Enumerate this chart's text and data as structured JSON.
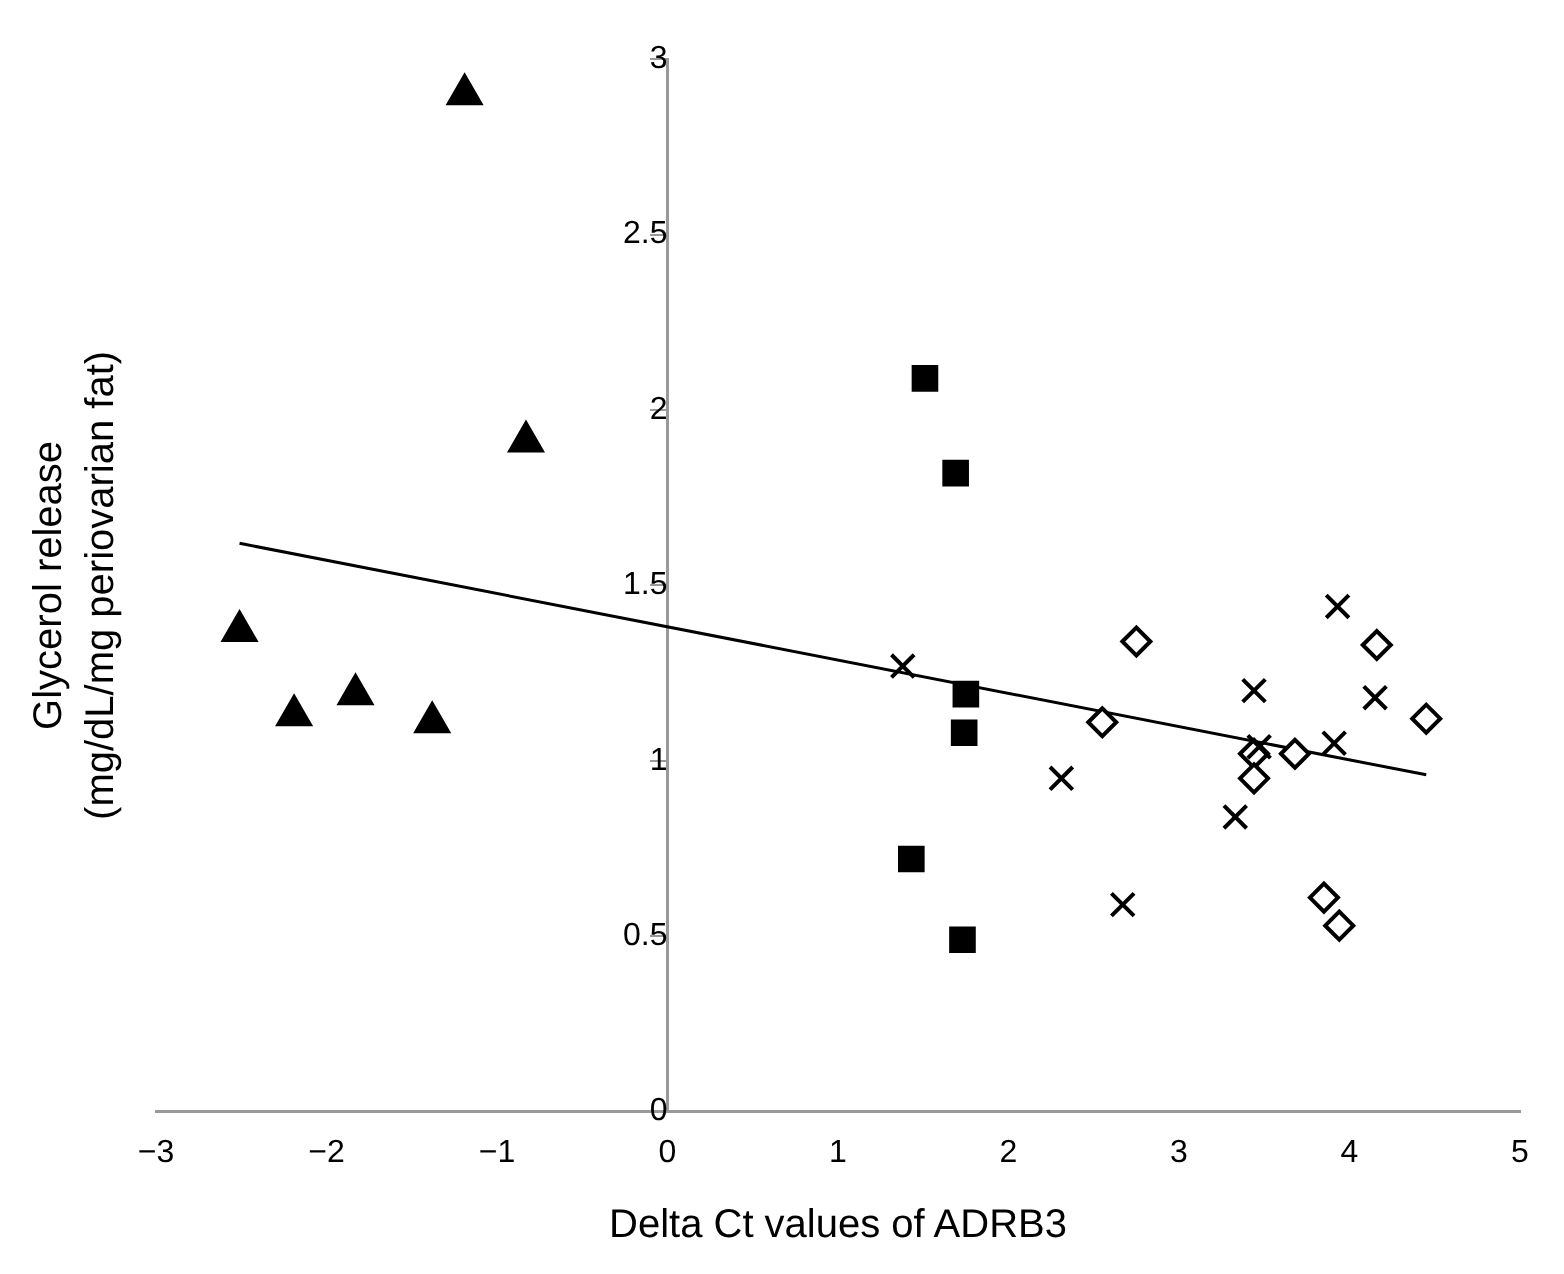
{
  "chart_data": {
    "type": "scatter",
    "xlabel": "Delta Ct values of ADRB3",
    "ylabel": "Glycerol release\n(mg/dL/mg periovarian fat)",
    "xlim": [
      -3,
      5
    ],
    "xticks": [
      {
        "value": -3,
        "label": "−3"
      },
      {
        "value": -2,
        "label": "−2"
      },
      {
        "value": -1,
        "label": "−1"
      },
      0,
      1,
      2,
      3,
      4,
      5
    ],
    "ylim": [
      0,
      3
    ],
    "yticks": [
      0,
      0.5,
      1,
      1.5,
      2,
      2.5,
      3
    ],
    "grid": false,
    "legend": false,
    "series": [
      {
        "type": "scatter",
        "marker": "triangle",
        "color": "#000000",
        "x": [
          -2.51,
          -2.19,
          -1.83,
          -1.38,
          -1.19,
          -0.83
        ],
        "values": [
          1.37,
          1.13,
          1.19,
          1.11,
          2.9,
          1.91
        ]
      },
      {
        "type": "scatter",
        "marker": "square",
        "color": "#000000",
        "x": [
          1.51,
          1.69,
          1.75,
          1.74,
          1.43,
          1.73
        ],
        "values": [
          2.09,
          1.82,
          1.19,
          1.08,
          0.72,
          0.49
        ]
      },
      {
        "type": "scatter",
        "marker": "cross",
        "color": "#000000",
        "x": [
          1.38,
          2.31,
          2.67,
          3.33,
          3.44,
          3.47,
          3.91,
          3.93,
          4.15
        ],
        "values": [
          1.27,
          0.95,
          0.59,
          0.84,
          1.2,
          1.04,
          1.05,
          1.44,
          1.18
        ]
      },
      {
        "type": "scatter",
        "marker": "diamond",
        "color": "#000000",
        "x": [
          2.75,
          2.55,
          3.44,
          3.44,
          3.68,
          4.16,
          4.45,
          3.85,
          3.94
        ],
        "values": [
          1.34,
          1.11,
          1.02,
          0.95,
          1.02,
          1.33,
          1.12,
          0.61,
          0.53
        ]
      },
      {
        "type": "line",
        "marker": "none",
        "line_style": "solid",
        "color": "#000000",
        "x": [
          -2.51,
          4.45
        ],
        "values": [
          1.62,
          0.96
        ]
      }
    ]
  }
}
